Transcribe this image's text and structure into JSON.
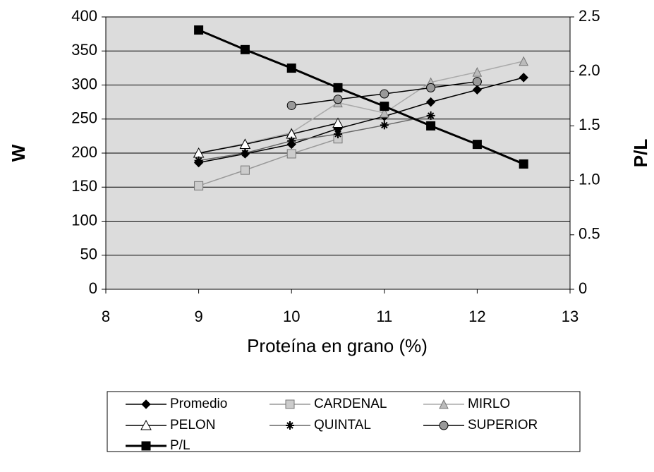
{
  "chart_data": {
    "type": "line",
    "xlabel": "Proteína en grano (%)",
    "ylabel": "W",
    "y2label": "P/L",
    "x": [
      9,
      9.5,
      10,
      10.5,
      11,
      11.5,
      12,
      12.5
    ],
    "xlim": [
      8,
      13
    ],
    "xticks": [
      8,
      9,
      10,
      11,
      12,
      13
    ],
    "ylim": [
      0,
      400
    ],
    "yticks": [
      0,
      50,
      100,
      150,
      200,
      250,
      300,
      350,
      400
    ],
    "y2lim": [
      0,
      2.5
    ],
    "y2ticks": [
      0,
      0.5,
      {
        "value": 1,
        "label": "1.0"
      },
      1.5,
      {
        "value": 2,
        "label": "2.0"
      },
      2.5
    ],
    "grid": true,
    "series": [
      {
        "name": "Promedio",
        "color": "#000000",
        "marker": "diamond",
        "values": [
          186,
          199,
          213,
          236,
          254,
          275,
          293,
          311
        ]
      },
      {
        "name": "CARDENAL",
        "color": "#999999",
        "marker": "square",
        "values": [
          152,
          175,
          199,
          221,
          null,
          null,
          null,
          null
        ]
      },
      {
        "name": "MIRLO",
        "color": "#aaaaaa",
        "marker": "triangle",
        "values": [
          200,
          214,
          230,
          274,
          259,
          304,
          319,
          335
        ]
      },
      {
        "name": "PELON",
        "color": "#000000",
        "marker": "triangle-open",
        "values": [
          200,
          213,
          228,
          244,
          null,
          null,
          null,
          null
        ]
      },
      {
        "name": "QUINTAL",
        "color": "#666666",
        "marker": "star",
        "values": [
          189,
          200,
          218,
          228,
          241,
          255,
          null,
          null
        ]
      },
      {
        "name": "SUPERIOR",
        "color": "#000000",
        "marker": "circle",
        "values": [
          null,
          null,
          270,
          279,
          287,
          296,
          305,
          null
        ]
      },
      {
        "name": "P/L",
        "color": "#000000",
        "marker": "square-filled",
        "axis": "y2",
        "values": [
          2.38,
          2.2,
          2.03,
          1.85,
          1.68,
          1.5,
          1.33,
          1.15
        ]
      }
    ]
  }
}
